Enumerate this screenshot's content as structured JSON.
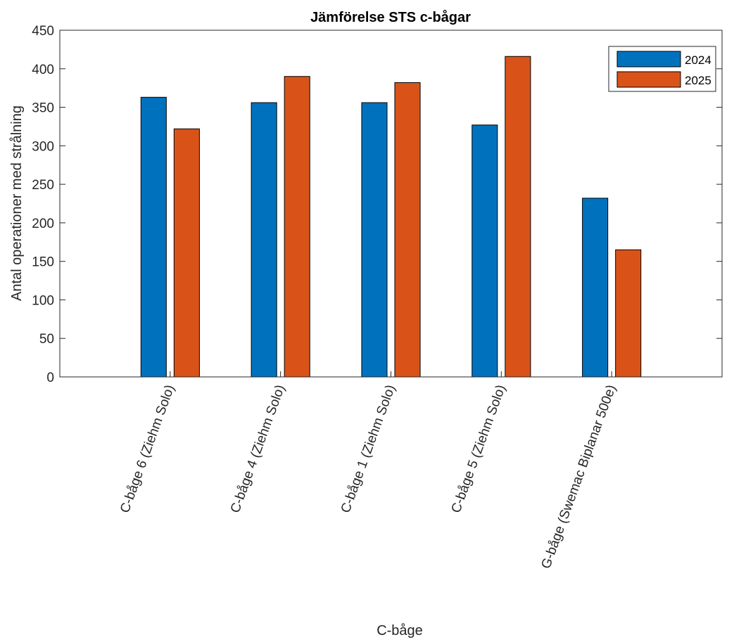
{
  "chart_data": {
    "type": "bar",
    "title": "Jämförelse STS c-bågar",
    "xlabel": "C-båge",
    "ylabel": "Antal operationer med strålning",
    "ylim": [
      0,
      450
    ],
    "yticks": [
      0,
      50,
      100,
      150,
      200,
      250,
      300,
      350,
      400,
      450
    ],
    "xlim": [
      0,
      6
    ],
    "categories": [
      "C-båge 6 (Ziehm Solo)",
      "C-båge 4 (Ziehm Solo)",
      "C-båge 1 (Ziehm Solo)",
      "C-båge 5 (Ziehm Solo)",
      "G-båge (Swemac Biplanar 500e)"
    ],
    "series": [
      {
        "name": "2024",
        "color": "#0072BD",
        "values": [
          363,
          356,
          356,
          327,
          232
        ]
      },
      {
        "name": "2025",
        "color": "#D95319",
        "values": [
          322,
          390,
          382,
          416,
          165
        ]
      }
    ],
    "grid": false,
    "legend": "top-right"
  }
}
